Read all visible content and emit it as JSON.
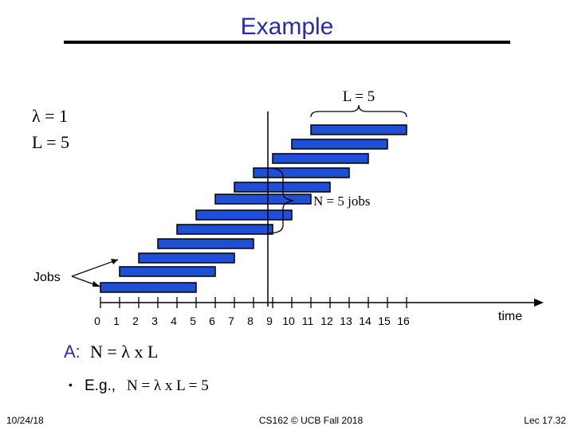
{
  "title": "Example",
  "parameters": [
    "λ = 1",
    "L = 5"
  ],
  "brace_label": "L = 5",
  "count_label": "N = 5 jobs",
  "jobs_label": "Jobs",
  "axis": {
    "ticks": [
      "0",
      "1",
      "2",
      "3",
      "4",
      "5",
      "6",
      "7",
      "8",
      "9",
      "10",
      "11",
      "12",
      "13",
      "14",
      "15",
      "16"
    ],
    "label": "time"
  },
  "answer": {
    "prefix": "A:",
    "formula": "N = λ x L"
  },
  "bullet": {
    "marker": "•",
    "text_sans": "E.g.,",
    "text_serif": "N = λ x L = 5"
  },
  "footer": {
    "date": "10/24/18",
    "course": "CS162 © UCB Fall 2018",
    "page": "Lec 17.32"
  }
}
